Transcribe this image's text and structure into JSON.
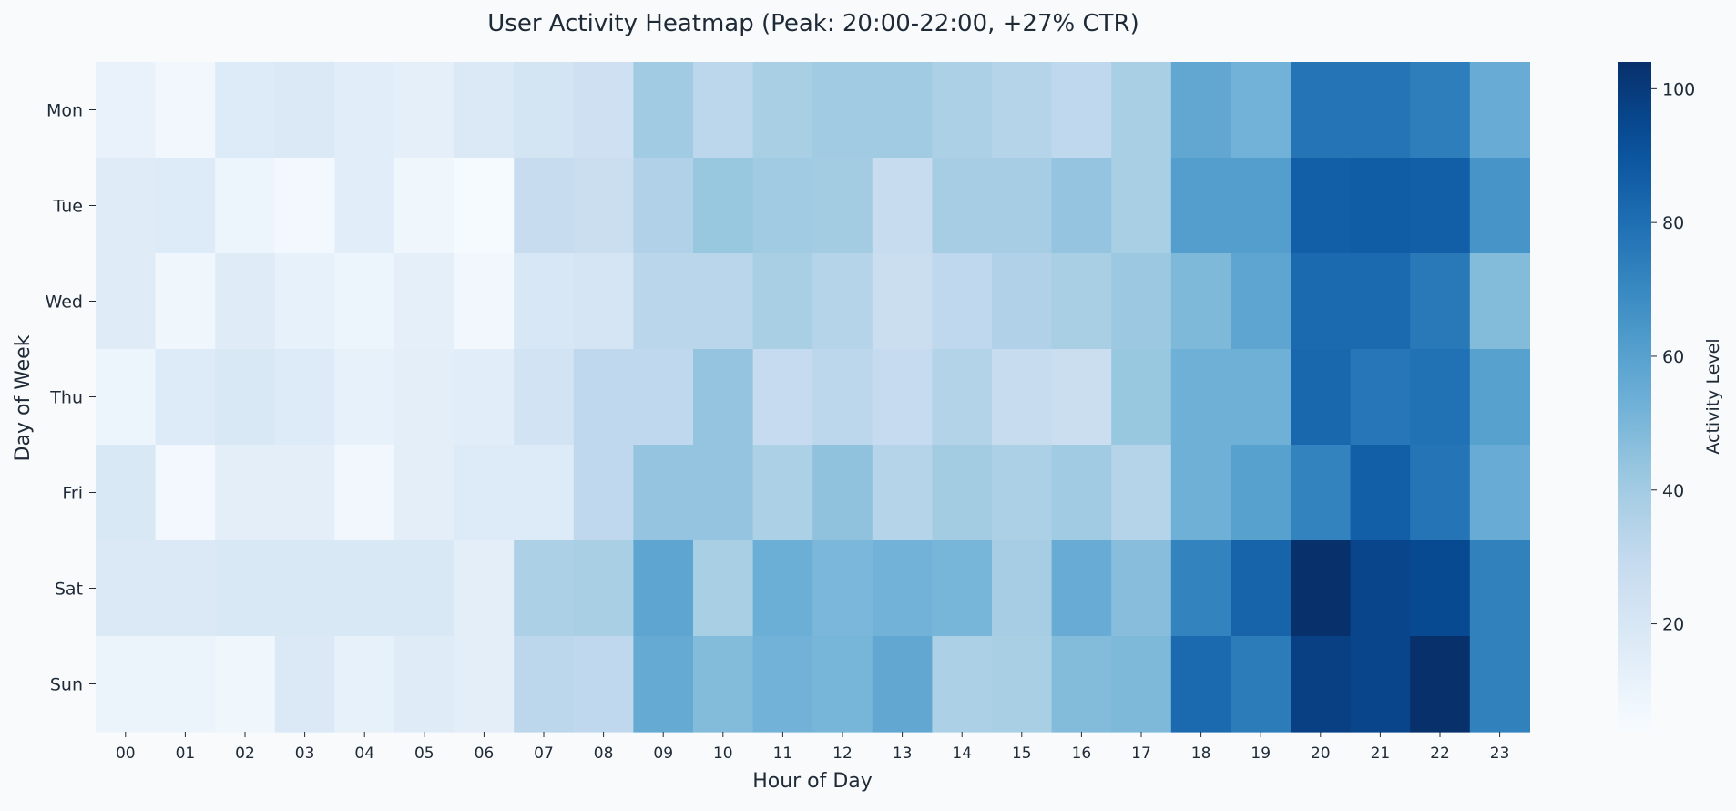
{
  "chart_data": {
    "type": "heatmap",
    "title": "User Activity Heatmap (Peak: 20:00-22:00, +27% CTR)",
    "xlabel": "Hour of Day",
    "ylabel": "Day of Week",
    "colorbar_label": "Activity Level",
    "colormap": "Blues",
    "vmin": 4,
    "vmax": 104,
    "colorbar_ticks": [
      20,
      40,
      60,
      80,
      100
    ],
    "x": [
      "00",
      "01",
      "02",
      "03",
      "04",
      "05",
      "06",
      "07",
      "08",
      "09",
      "10",
      "11",
      "12",
      "13",
      "14",
      "15",
      "16",
      "17",
      "18",
      "19",
      "20",
      "21",
      "22",
      "23"
    ],
    "y": [
      "Mon",
      "Tue",
      "Wed",
      "Thu",
      "Fri",
      "Sat",
      "Sun"
    ],
    "values": [
      [
        11,
        7,
        17,
        18,
        15,
        13,
        18,
        22,
        25,
        41,
        32,
        38,
        41,
        41,
        37,
        34,
        31,
        38,
        57,
        52,
        78,
        78,
        74,
        55
      ],
      [
        16,
        17,
        9,
        6,
        15,
        8,
        5,
        28,
        27,
        36,
        43,
        41,
        40,
        28,
        39,
        39,
        44,
        38,
        61,
        61,
        86,
        87,
        86,
        65
      ],
      [
        16,
        8,
        16,
        12,
        9,
        13,
        7,
        20,
        21,
        33,
        33,
        38,
        34,
        27,
        31,
        36,
        38,
        42,
        49,
        58,
        82,
        82,
        76,
        48
      ],
      [
        9,
        17,
        19,
        17,
        12,
        14,
        15,
        23,
        31,
        31,
        44,
        29,
        32,
        29,
        35,
        28,
        27,
        43,
        53,
        53,
        83,
        77,
        79,
        60
      ],
      [
        19,
        6,
        14,
        14,
        7,
        14,
        17,
        17,
        31,
        44,
        44,
        37,
        45,
        34,
        40,
        37,
        41,
        34,
        53,
        60,
        72,
        86,
        78,
        55
      ],
      [
        18,
        18,
        19,
        19,
        19,
        19,
        14,
        37,
        38,
        58,
        38,
        54,
        50,
        52,
        51,
        39,
        55,
        47,
        72,
        84,
        104,
        96,
        94,
        73
      ],
      [
        10,
        10,
        8,
        18,
        12,
        16,
        14,
        32,
        31,
        56,
        48,
        52,
        51,
        57,
        37,
        38,
        48,
        49,
        82,
        75,
        98,
        96,
        104,
        73
      ]
    ]
  }
}
